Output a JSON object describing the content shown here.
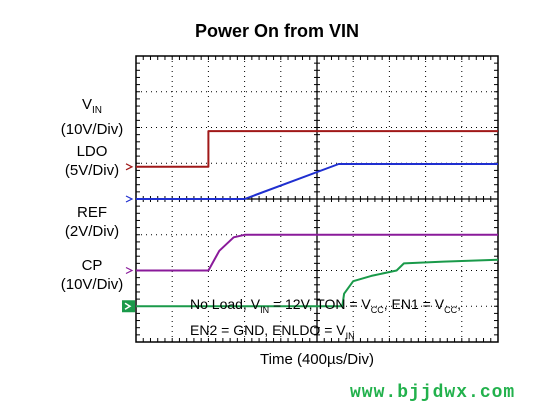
{
  "chart_data": {
    "type": "line",
    "title": "Power On from VIN",
    "xlabel": "Time (400µs/Div)",
    "x_divisions": 10,
    "y_divisions": 8,
    "grid": true,
    "series": [
      {
        "name": "VIN",
        "unit_label": "(10V/Div)",
        "color": "#a01818",
        "points": [
          [
            0,
            4.9
          ],
          [
            2,
            4.9
          ],
          [
            2,
            5.9
          ],
          [
            10,
            5.9
          ]
        ]
      },
      {
        "name": "LDO",
        "unit_label": "(5V/Div)",
        "color": "#1f2fd0",
        "points": [
          [
            0,
            4.0
          ],
          [
            3,
            4.0
          ],
          [
            5.6,
            4.98
          ],
          [
            10,
            4.98
          ]
        ]
      },
      {
        "name": "REF",
        "unit_label": "(2V/Div)",
        "color": "#8a1a9a",
        "points": [
          [
            0,
            2.0
          ],
          [
            2,
            2.0
          ],
          [
            2.3,
            2.55
          ],
          [
            2.7,
            2.93
          ],
          [
            3,
            3.0
          ],
          [
            10,
            3.0
          ]
        ]
      },
      {
        "name": "CP",
        "unit_label": "(10V/Div)",
        "color": "#1a9a4a",
        "points": [
          [
            0,
            1.0
          ],
          [
            5.7,
            1.0
          ],
          [
            5.75,
            1.35
          ],
          [
            6.0,
            1.7
          ],
          [
            6.5,
            1.85
          ],
          [
            7.2,
            2.0
          ],
          [
            7.4,
            2.2
          ],
          [
            8.5,
            2.25
          ],
          [
            10,
            2.3
          ]
        ]
      }
    ],
    "annotation_line1": [
      "No Load, V",
      "IN",
      " = 12V, TON = V",
      "CC",
      ", EN1 = V",
      "CC",
      ","
    ],
    "annotation_line2": [
      "EN2 = GND, ENLDO = V",
      "IN",
      ""
    ]
  },
  "labels": {
    "vin_main": "V",
    "vin_sub": "IN",
    "vin_scale": "(10V/Div)",
    "ldo_main": "LDO",
    "ldo_scale": "(5V/Div)",
    "ref_main": "REF",
    "ref_scale": "(2V/Div)",
    "cp_main": "CP",
    "cp_scale": "(10V/Div)"
  },
  "watermark": "www.bjjdwx.com",
  "colors": {
    "grid": "#000000",
    "ch1_marker": "#a01818",
    "ch2_marker": "#1f2fd0",
    "ch3_marker": "#8a1a9a",
    "ch4_marker": "#1a9a4a"
  }
}
